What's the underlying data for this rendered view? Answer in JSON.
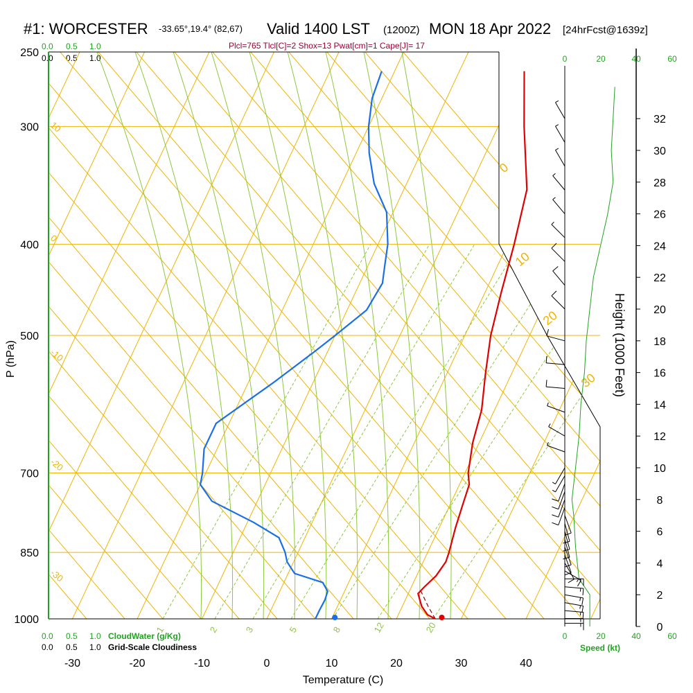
{
  "header": {
    "station": "#1: WORCESTER",
    "coords": "-33.65°,19.4° (82,67)",
    "valid": "Valid 1400 LST",
    "valid_utc": "(1200Z)",
    "date": "MON 18 Apr 2022",
    "forecast": "[24hrFcst@1639z]",
    "indices": "Plcl=765 Tlcl[C]=2 Shox=13 Pwat[cm]=1 Cape[J]= 17"
  },
  "colors": {
    "temperature": "#e00000",
    "dewpoint": "#1a6fe8",
    "isotherm": "#f0b400",
    "dry_adiabat": "#f0b400",
    "moist_adiabat": "#8cc83c",
    "mixing_ratio": "#8cc83c",
    "height_profile": "#21a321",
    "indices_text": "#990033",
    "scale_text": "#21a321"
  },
  "scales": {
    "cloud_water_top": [
      "0.0",
      "0.5",
      "1.0"
    ],
    "cloudiness_top": [
      "0.0",
      "0.5",
      "1.0"
    ],
    "cloud_water_bottom": [
      "0.0",
      "0.5",
      "1.0"
    ],
    "cloud_water_label": "CloudWater (g/Kg)",
    "cloudiness_bottom": [
      "0.0",
      "0.5",
      "1.0"
    ],
    "cloudiness_label": "Grid-Scale Cloudiness",
    "speed_top": [
      "0",
      "20",
      "40",
      "60"
    ],
    "speed_bottom": [
      "0",
      "20",
      "40",
      "60"
    ],
    "speed_label": "Speed (kt)"
  },
  "chart_data": {
    "type": "skew-t",
    "xlabel": "Temperature (C)",
    "ylabel": "P (hPa)",
    "y2label": "Height (1000 Feet)",
    "pressure_ticks": [
      "250",
      "300",
      "400",
      "500",
      "700",
      "850",
      "1000"
    ],
    "pressure_values": [
      250,
      300,
      400,
      500,
      700,
      850,
      1000
    ],
    "temperature_ticks": [
      "-30",
      "-20",
      "-10",
      "0",
      "10",
      "20",
      "30",
      "40"
    ],
    "temperature_values": [
      -30,
      -20,
      -10,
      0,
      10,
      20,
      30,
      40
    ],
    "height_ticks": [
      "0",
      "2",
      "4",
      "6",
      "8",
      "10",
      "12",
      "14",
      "16",
      "18",
      "20",
      "22",
      "24",
      "26",
      "28",
      "30",
      "32"
    ],
    "height_values": [
      0,
      2,
      4,
      6,
      8,
      10,
      12,
      14,
      16,
      18,
      20,
      22,
      24,
      26,
      28,
      30,
      32
    ],
    "isotherm_labels": [
      "10",
      "0",
      "-10",
      "-20",
      "-30",
      "0",
      "10",
      "20",
      "30"
    ],
    "mixing_ratio_labels": [
      "1",
      "2",
      "3",
      "5",
      "8",
      "12",
      "20"
    ],
    "temperature_profile": [
      {
        "p": 1000,
        "t": 26
      },
      {
        "p": 990,
        "t": 24.5
      },
      {
        "p": 970,
        "t": 23
      },
      {
        "p": 940,
        "t": 21.5
      },
      {
        "p": 925,
        "t": 22
      },
      {
        "p": 900,
        "t": 23
      },
      {
        "p": 870,
        "t": 23.5
      },
      {
        "p": 850,
        "t": 23.3
      },
      {
        "p": 800,
        "t": 22.5
      },
      {
        "p": 760,
        "t": 22
      },
      {
        "p": 720,
        "t": 21.5
      },
      {
        "p": 700,
        "t": 20.5
      },
      {
        "p": 650,
        "t": 19
      },
      {
        "p": 600,
        "t": 18
      },
      {
        "p": 550,
        "t": 16
      },
      {
        "p": 500,
        "t": 14
      },
      {
        "p": 450,
        "t": 12.5
      },
      {
        "p": 400,
        "t": 11
      },
      {
        "p": 350,
        "t": 9
      },
      {
        "p": 300,
        "t": 4
      },
      {
        "p": 262,
        "t": 0
      }
    ],
    "dewpoint_profile": [
      {
        "p": 1000,
        "t": 7.5
      },
      {
        "p": 980,
        "t": 7.5
      },
      {
        "p": 955,
        "t": 7.6
      },
      {
        "p": 935,
        "t": 7.4
      },
      {
        "p": 915,
        "t": 6
      },
      {
        "p": 895,
        "t": 1
      },
      {
        "p": 870,
        "t": -1
      },
      {
        "p": 850,
        "t": -2
      },
      {
        "p": 820,
        "t": -4
      },
      {
        "p": 790,
        "t": -9
      },
      {
        "p": 750,
        "t": -17
      },
      {
        "p": 720,
        "t": -20
      },
      {
        "p": 700,
        "t": -20.5
      },
      {
        "p": 660,
        "t": -22
      },
      {
        "p": 620,
        "t": -22
      },
      {
        "p": 560,
        "t": -16
      },
      {
        "p": 520,
        "t": -12
      },
      {
        "p": 500,
        "t": -10
      },
      {
        "p": 470,
        "t": -7
      },
      {
        "p": 440,
        "t": -6.5
      },
      {
        "p": 420,
        "t": -7.5
      },
      {
        "p": 400,
        "t": -8.5
      },
      {
        "p": 370,
        "t": -11
      },
      {
        "p": 345,
        "t": -15
      },
      {
        "p": 320,
        "t": -18
      },
      {
        "p": 300,
        "t": -20
      },
      {
        "p": 280,
        "t": -21.5
      },
      {
        "p": 262,
        "t": -22
      }
    ],
    "surface_temperature": 27,
    "surface_dewpoint": 10.5,
    "parcel_path": [
      {
        "p": 1000,
        "t": 26
      },
      {
        "p": 970,
        "t": 24
      },
      {
        "p": 935,
        "t": 21.8
      }
    ],
    "wind_barbs": [
      {
        "h": 0.2,
        "dir": 90,
        "spd": 15
      },
      {
        "h": 0.5,
        "dir": 90,
        "spd": 15
      },
      {
        "h": 1.0,
        "dir": 95,
        "spd": 15
      },
      {
        "h": 1.5,
        "dir": 100,
        "spd": 15
      },
      {
        "h": 2.0,
        "dir": 100,
        "spd": 15
      },
      {
        "h": 2.5,
        "dir": 95,
        "spd": 15
      },
      {
        "h": 3.0,
        "dir": 90,
        "spd": 15
      },
      {
        "h": 3.5,
        "dir": 120,
        "spd": 15
      },
      {
        "h": 4.0,
        "dir": 150,
        "spd": 10
      },
      {
        "h": 4.5,
        "dir": 160,
        "spd": 10
      },
      {
        "h": 5.0,
        "dir": 160,
        "spd": 10
      },
      {
        "h": 5.5,
        "dir": 165,
        "spd": 10
      },
      {
        "h": 6.0,
        "dir": 165,
        "spd": 10
      },
      {
        "h": 6.5,
        "dir": 165,
        "spd": 10
      },
      {
        "h": 7.0,
        "dir": 160,
        "spd": 10
      },
      {
        "h": 7.5,
        "dir": 200,
        "spd": 10
      },
      {
        "h": 8.0,
        "dir": 200,
        "spd": 10
      },
      {
        "h": 8.5,
        "dir": 200,
        "spd": 10
      },
      {
        "h": 9.0,
        "dir": 200,
        "spd": 10
      },
      {
        "h": 9.5,
        "dir": 210,
        "spd": 5
      },
      {
        "h": 10.0,
        "dir": 210,
        "spd": 5
      },
      {
        "h": 11.0,
        "dir": 290,
        "spd": 5
      },
      {
        "h": 12.0,
        "dir": 300,
        "spd": 5
      },
      {
        "h": 13.5,
        "dir": 290,
        "spd": 5
      },
      {
        "h": 15.0,
        "dir": 275,
        "spd": 10
      },
      {
        "h": 16.5,
        "dir": 275,
        "spd": 10
      },
      {
        "h": 18.0,
        "dir": 285,
        "spd": 10
      },
      {
        "h": 20.0,
        "dir": 315,
        "spd": 10
      },
      {
        "h": 21.5,
        "dir": 320,
        "spd": 10
      },
      {
        "h": 23.0,
        "dir": 315,
        "spd": 10
      },
      {
        "h": 24.5,
        "dir": 315,
        "spd": 5
      },
      {
        "h": 26.0,
        "dir": 320,
        "spd": 5
      },
      {
        "h": 27.5,
        "dir": 320,
        "spd": 5
      },
      {
        "h": 29.0,
        "dir": 330,
        "spd": 5
      },
      {
        "h": 30.5,
        "dir": 330,
        "spd": 5
      },
      {
        "h": 32.0,
        "dir": 330,
        "spd": 5
      }
    ],
    "wind_speed_profile": [
      {
        "h": 0,
        "spd": 14
      },
      {
        "h": 2,
        "spd": 14
      },
      {
        "h": 3,
        "spd": 8
      },
      {
        "h": 5,
        "spd": 6
      },
      {
        "h": 7,
        "spd": 5
      },
      {
        "h": 8,
        "spd": 4
      },
      {
        "h": 10,
        "spd": 6
      },
      {
        "h": 12,
        "spd": 8
      },
      {
        "h": 14,
        "spd": 9
      },
      {
        "h": 16,
        "spd": 11
      },
      {
        "h": 18,
        "spd": 12
      },
      {
        "h": 20,
        "spd": 14
      },
      {
        "h": 22,
        "spd": 16
      },
      {
        "h": 24,
        "spd": 20
      },
      {
        "h": 26,
        "spd": 24
      },
      {
        "h": 28,
        "spd": 27
      },
      {
        "h": 30,
        "spd": 26
      },
      {
        "h": 32,
        "spd": 27
      },
      {
        "h": 34,
        "spd": 28
      }
    ]
  }
}
